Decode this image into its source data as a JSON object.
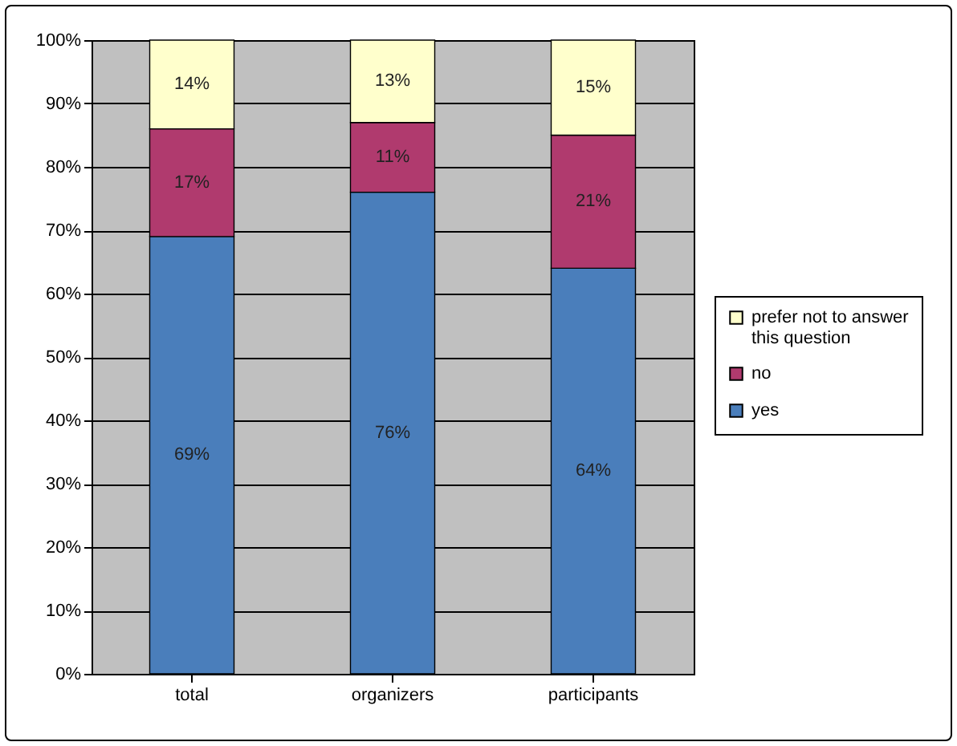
{
  "chart_data": {
    "type": "bar",
    "stacked": true,
    "categories": [
      "total",
      "organizers",
      "participants"
    ],
    "series": [
      {
        "name": "yes",
        "color": "#4a7ebb",
        "values": [
          69,
          76,
          64
        ],
        "value_labels": [
          "69%",
          "76%",
          "64%"
        ]
      },
      {
        "name": "no",
        "color": "#b03a6e",
        "values": [
          17,
          11,
          21
        ],
        "value_labels": [
          "17%",
          "11%",
          "21%"
        ]
      },
      {
        "name": "prefer not to answer this question",
        "color": "#ffffcc",
        "values": [
          14,
          13,
          15
        ],
        "value_labels": [
          "14%",
          "13%",
          "15%"
        ]
      }
    ],
    "ylim": [
      0,
      100
    ],
    "yticks": [
      {
        "value": 0,
        "label": "0%"
      },
      {
        "value": 10,
        "label": "10%"
      },
      {
        "value": 20,
        "label": "20%"
      },
      {
        "value": 30,
        "label": "30%"
      },
      {
        "value": 40,
        "label": "40%"
      },
      {
        "value": 50,
        "label": "50%"
      },
      {
        "value": 60,
        "label": "60%"
      },
      {
        "value": 70,
        "label": "70%"
      },
      {
        "value": 80,
        "label": "80%"
      },
      {
        "value": 90,
        "label": "90%"
      },
      {
        "value": 100,
        "label": "100%"
      }
    ],
    "grid": "y",
    "legend": "right"
  }
}
